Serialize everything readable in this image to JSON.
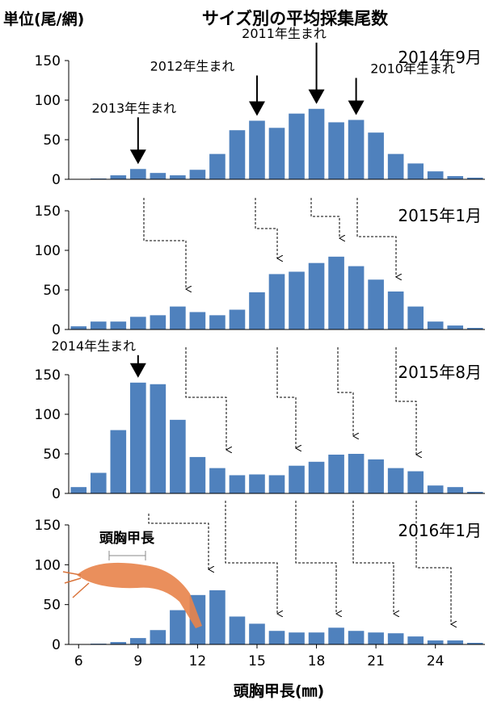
{
  "header": {
    "unit": "単位(尾/網)",
    "title": "サイズ別の平均採集尾数"
  },
  "chart_data": [
    {
      "type": "bar",
      "title": "2014年9月",
      "color": "#4f81bd",
      "x": [
        6,
        7,
        8,
        9,
        10,
        11,
        12,
        13,
        14,
        15,
        16,
        17,
        18,
        19,
        20,
        21,
        22,
        23,
        24,
        25,
        26
      ],
      "values": [
        0,
        1,
        5,
        13,
        8,
        5,
        12,
        32,
        62,
        74,
        65,
        83,
        89,
        72,
        75,
        59,
        32,
        20,
        10,
        4,
        2
      ],
      "xlim": [
        5.5,
        26.5
      ],
      "ylim": [
        0,
        150
      ],
      "yticks": [
        0,
        50,
        100,
        150
      ],
      "annotations": [
        {
          "text": "2013年生まれ",
          "x": 9
        },
        {
          "text": "2012年生まれ",
          "x": 15
        },
        {
          "text": "2011年生まれ",
          "x": 18
        },
        {
          "text": "2010年生まれ",
          "x": 20
        }
      ]
    },
    {
      "type": "bar",
      "title": "2015年1月",
      "color": "#4f81bd",
      "x": [
        6,
        7,
        8,
        9,
        10,
        11,
        12,
        13,
        14,
        15,
        16,
        17,
        18,
        19,
        20,
        21,
        22,
        23,
        24,
        25,
        26
      ],
      "values": [
        4,
        10,
        10,
        16,
        18,
        29,
        22,
        18,
        25,
        47,
        70,
        73,
        84,
        92,
        80,
        63,
        48,
        29,
        10,
        5,
        2
      ],
      "xlim": [
        5.5,
        26.5
      ],
      "ylim": [
        0,
        150
      ],
      "yticks": [
        0,
        50,
        100,
        150
      ]
    },
    {
      "type": "bar",
      "title": "2015年8月",
      "color": "#4f81bd",
      "x": [
        6,
        7,
        8,
        9,
        10,
        11,
        12,
        13,
        14,
        15,
        16,
        17,
        18,
        19,
        20,
        21,
        22,
        23,
        24,
        25,
        26
      ],
      "values": [
        8,
        26,
        80,
        140,
        138,
        93,
        46,
        32,
        23,
        24,
        23,
        35,
        40,
        49,
        50,
        43,
        32,
        28,
        10,
        8,
        2
      ],
      "xlim": [
        5.5,
        26.5
      ],
      "ylim": [
        0,
        150
      ],
      "yticks": [
        0,
        50,
        100,
        150
      ],
      "annotations": [
        {
          "text": "2014年生まれ",
          "x": 9
        }
      ]
    },
    {
      "type": "bar",
      "title": "2016年1月",
      "color": "#4f81bd",
      "x": [
        6,
        7,
        8,
        9,
        10,
        11,
        12,
        13,
        14,
        15,
        16,
        17,
        18,
        19,
        20,
        21,
        22,
        23,
        24,
        25,
        26
      ],
      "values": [
        0,
        1,
        3,
        8,
        18,
        43,
        62,
        68,
        35,
        26,
        17,
        15,
        15,
        21,
        17,
        15,
        14,
        10,
        5,
        5,
        2
      ],
      "xlim": [
        5.5,
        26.5
      ],
      "ylim": [
        0,
        150
      ],
      "yticks": [
        0,
        50,
        100,
        150
      ],
      "xticks": [
        6,
        9,
        12,
        15,
        18,
        21,
        24
      ],
      "xlabel": "頭胸甲長(㎜)",
      "annotations": [
        {
          "text": "頭胸甲長"
        }
      ]
    }
  ]
}
